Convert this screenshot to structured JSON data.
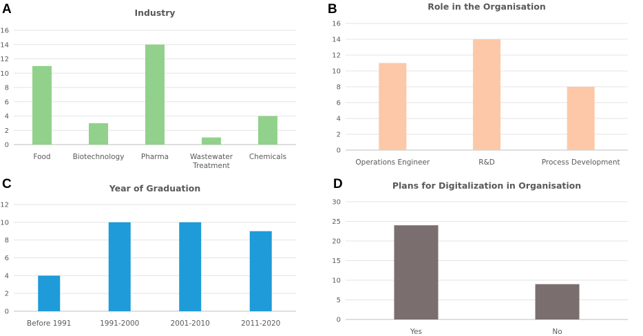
{
  "chart_data": [
    {
      "panel": "A",
      "type": "bar",
      "title": "Industry",
      "categories": [
        "Food",
        "Biotechnology",
        "Pharma",
        "Wastewater Treatment",
        "Chemicals"
      ],
      "category_lines": [
        [
          "Food"
        ],
        [
          "Biotechnology"
        ],
        [
          "Pharma"
        ],
        [
          "Wastewater",
          "Treatment"
        ],
        [
          "Chemicals"
        ]
      ],
      "values": [
        11,
        3,
        14,
        1,
        4
      ],
      "ylim": [
        0,
        16
      ],
      "yticks": [
        0,
        2,
        4,
        6,
        8,
        10,
        12,
        14,
        16
      ],
      "color": "#92d18b",
      "grid": true,
      "xlabel": "",
      "ylabel": ""
    },
    {
      "panel": "B",
      "type": "bar",
      "title": "Role in the Organisation",
      "categories": [
        "Operations Engineer",
        "R&D",
        "Process Development"
      ],
      "category_lines": [
        [
          "Operations Engineer"
        ],
        [
          "R&D"
        ],
        [
          "Process Development"
        ]
      ],
      "values": [
        11,
        14,
        8
      ],
      "ylim": [
        0,
        16
      ],
      "yticks": [
        0,
        2,
        4,
        6,
        8,
        10,
        12,
        14,
        16
      ],
      "color": "#fcc8a7",
      "grid": true,
      "xlabel": "",
      "ylabel": ""
    },
    {
      "panel": "C",
      "type": "bar",
      "title": "Year of Graduation",
      "categories": [
        "Before 1991",
        "1991-2000",
        "2001-2010",
        "2011-2020"
      ],
      "category_lines": [
        [
          "Before 1991"
        ],
        [
          "1991-2000"
        ],
        [
          "2001-2010"
        ],
        [
          "2011-2020"
        ]
      ],
      "values": [
        4,
        10,
        10,
        9
      ],
      "ylim": [
        0,
        12
      ],
      "yticks": [
        0,
        2,
        4,
        6,
        8,
        10,
        12
      ],
      "color": "#1e9bd8",
      "grid": true,
      "xlabel": "",
      "ylabel": ""
    },
    {
      "panel": "D",
      "type": "bar",
      "title": "Plans for Digitalization in Organisation",
      "categories": [
        "Yes",
        "No"
      ],
      "category_lines": [
        [
          "Yes"
        ],
        [
          "No"
        ]
      ],
      "values": [
        24,
        9
      ],
      "ylim": [
        0,
        30
      ],
      "yticks": [
        0,
        5,
        10,
        15,
        20,
        25,
        30
      ],
      "color": "#7a6e6e",
      "grid": true,
      "xlabel": "",
      "ylabel": ""
    }
  ]
}
